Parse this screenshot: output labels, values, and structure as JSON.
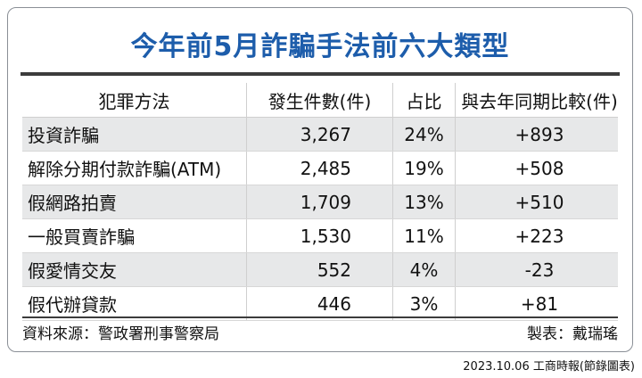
{
  "title": "今年前5月詐騙手法前六大類型",
  "table": {
    "headers": [
      "犯罪方法",
      "發生件數(件)",
      "占比",
      "與去年同期比較(件)"
    ],
    "rows": [
      {
        "method": "投資詐騙",
        "count": "3,267",
        "share": "24%",
        "change": "+893"
      },
      {
        "method": "解除分期付款詐騙(ATM)",
        "count": "2,485",
        "share": "19%",
        "change": "+508"
      },
      {
        "method": "假網路拍賣",
        "count": "1,709",
        "share": "13%",
        "change": "+510"
      },
      {
        "method": "一般買賣詐騙",
        "count": "1,530",
        "share": "11%",
        "change": "+223"
      },
      {
        "method": "假愛情交友",
        "count": "552",
        "share": "4%",
        "change": "-23"
      },
      {
        "method": "假代辦貸款",
        "count": "446",
        "share": "3%",
        "change": "+81"
      }
    ]
  },
  "footer": {
    "source": "資料來源：警政署刑事警察局",
    "maker": "製表：戴瑞瑤"
  },
  "credit": "2023.10.06 工商時報(節錄圖表)",
  "colors": {
    "title": "#1d5dab",
    "row_shade": "#e7e8e9"
  }
}
